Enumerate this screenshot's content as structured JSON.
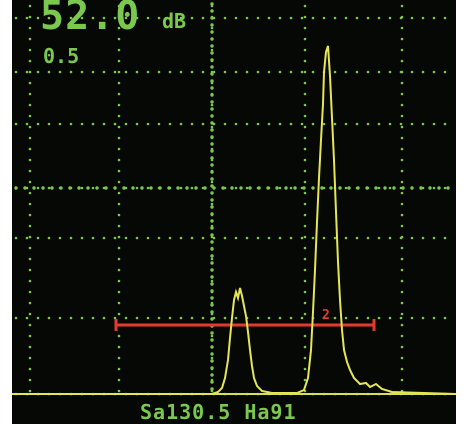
{
  "display": {
    "gain_value": "52.0",
    "gain_unit": "dB",
    "gain_step": "0.5"
  },
  "readout": {
    "text": "Sa130.5 Ha91"
  },
  "gate": {
    "marker_label": "2"
  },
  "colors": {
    "background": "#050805",
    "grid": "#7bc84f",
    "signal": "#e6e654",
    "gate": "#e23b2e",
    "text": "#7bc84f"
  }
}
